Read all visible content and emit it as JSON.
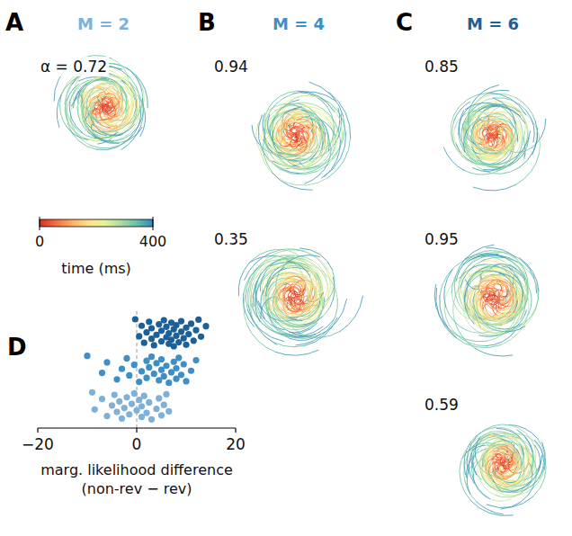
{
  "chart_data": {
    "type": "scatter",
    "panel_label": "D",
    "xlabel": "marg. likelihood difference (non-rev − rev)",
    "xlim": [
      -20,
      20
    ],
    "xticks": [
      {
        "value": -20,
        "label": "−20"
      },
      0,
      20
    ],
    "vline": 0,
    "series": [
      {
        "name": "M = 2",
        "color": "#7fb0d8",
        "values": [
          -9,
          -8.5,
          -7,
          -6,
          -5,
          -4.5,
          -4,
          -3.5,
          -3,
          -2.5,
          -2,
          -1.5,
          -1,
          -0.5,
          0,
          0.5,
          1,
          1,
          1.5,
          2,
          2.5,
          3,
          4,
          4.5,
          5,
          5.5,
          6,
          6.5
        ]
      },
      {
        "name": "M = 4",
        "color": "#3f8fc6",
        "values": [
          -10,
          -7,
          -6,
          -4,
          -3,
          -2,
          -1.5,
          -0.5,
          0.5,
          1,
          2,
          2,
          2.5,
          3,
          3.5,
          4,
          4.5,
          5,
          5,
          5.5,
          6,
          6.5,
          7,
          7.5,
          8,
          8,
          8.5,
          9,
          9.5,
          10,
          11,
          12
        ]
      },
      {
        "name": "M = 6",
        "color": "#1d6098",
        "values": [
          -0.3,
          0.5,
          1,
          1.5,
          2,
          2.5,
          3,
          3,
          3.5,
          4,
          4.5,
          5,
          5,
          5.5,
          6,
          6,
          6.5,
          6.5,
          7,
          7,
          7.5,
          7.5,
          8,
          8,
          8.5,
          9,
          9,
          9.5,
          10,
          10,
          10.5,
          11,
          11.5,
          12,
          12.5,
          13,
          14
        ]
      }
    ]
  },
  "trajectory_panels": [
    {
      "panel_label": "A",
      "alpha_labels": [
        "α = 0.72"
      ]
    },
    {
      "panel_label": "B",
      "alpha_labels": [
        "0.94",
        "0.35"
      ]
    },
    {
      "panel_label": "C",
      "alpha_labels": [
        "0.85",
        "0.95",
        "0.59"
      ]
    }
  ],
  "colorbar": {
    "label": "time (ms)",
    "range": [
      0,
      400
    ],
    "ticks": [
      0,
      400
    ],
    "colors": [
      "#d7301f",
      "#f46d43",
      "#fdae61",
      "#fee08b",
      "#e6f598",
      "#abdda4",
      "#66c2a5",
      "#3288bd"
    ]
  }
}
